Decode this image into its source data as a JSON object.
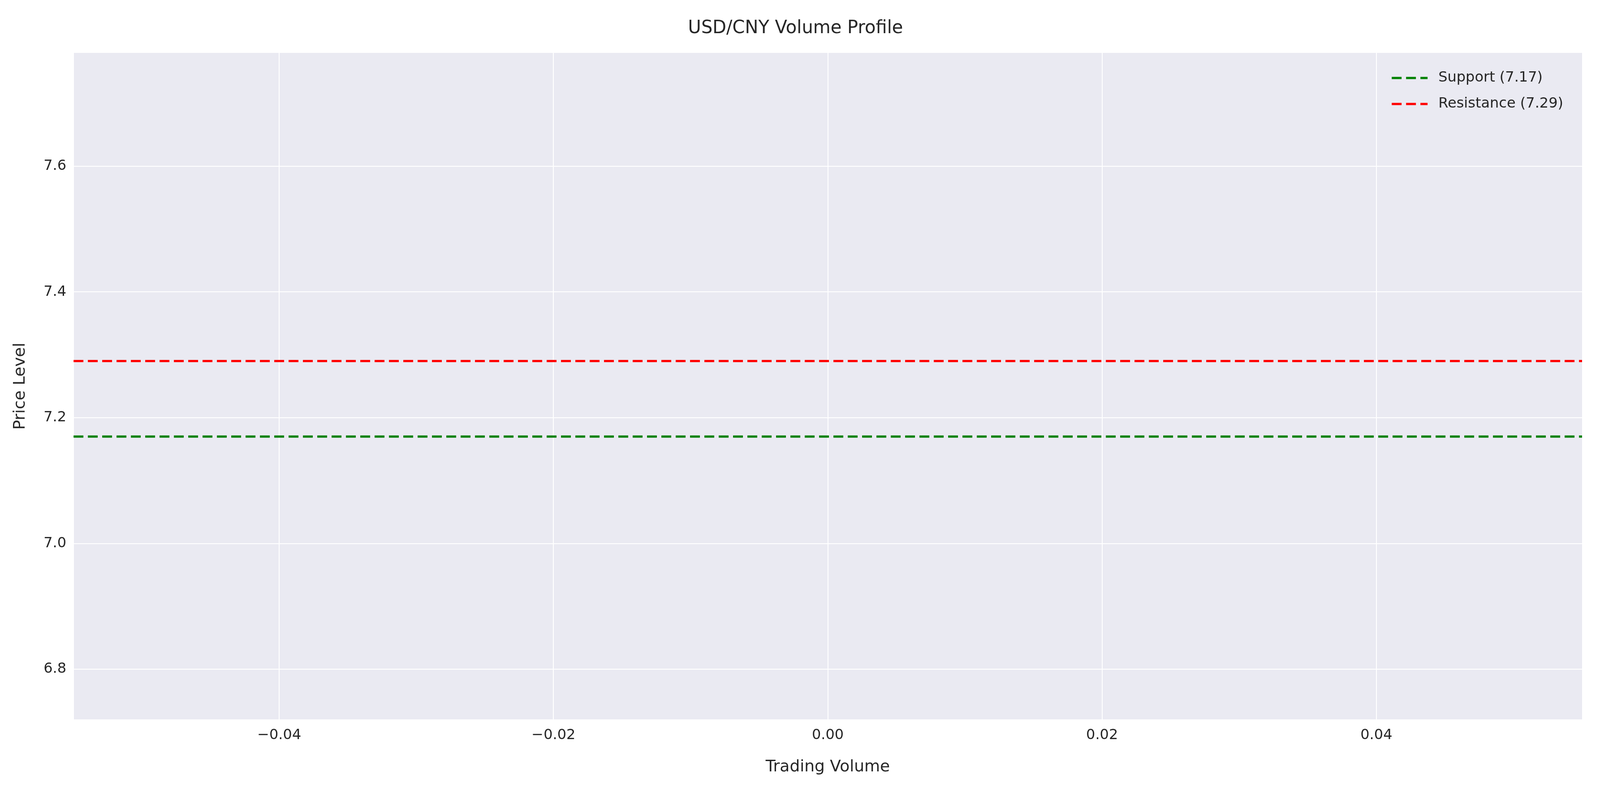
{
  "chart_data": {
    "type": "line",
    "title": "USD/CNY Volume Profile",
    "x_label": "Trading Volume",
    "y_label": "Price Level",
    "x": [
      -0.055,
      0.055
    ],
    "series": [
      {
        "name": "Support (7.17)",
        "color": "#008000",
        "line_style": "dashed",
        "values": [
          7.17,
          7.17
        ]
      },
      {
        "name": "Resistance (7.29)",
        "color": "#ff0000",
        "line_style": "dashed",
        "values": [
          7.29,
          7.29
        ]
      }
    ],
    "xlim": [
      -0.055,
      0.055
    ],
    "xticks": [
      {
        "value": -0.04,
        "label": "−0.04"
      },
      {
        "value": -0.02,
        "label": "−0.02"
      },
      {
        "value": 0,
        "label": "0.00"
      },
      0.02,
      0.04
    ],
    "ylim": [
      6.72,
      7.78
    ],
    "yticks": [
      6.8,
      {
        "value": 7,
        "label": "7.0"
      },
      7.2,
      7.4,
      7.6
    ],
    "grid": true,
    "legend": "upper right"
  }
}
